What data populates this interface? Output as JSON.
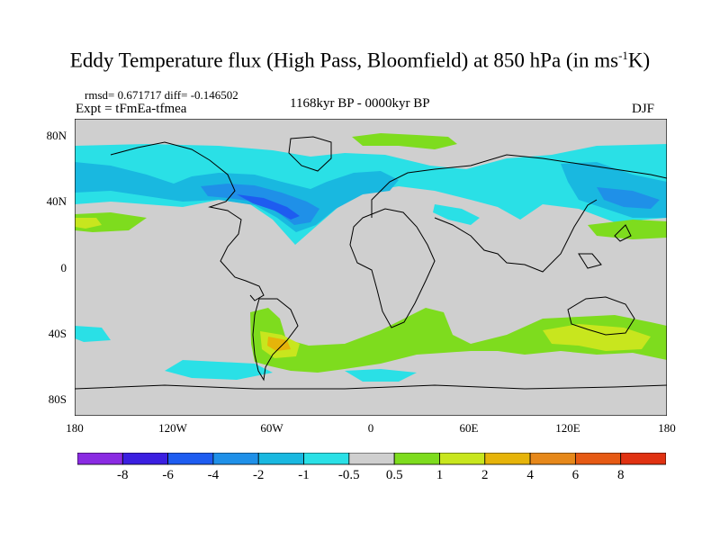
{
  "title": {
    "main": "Eddy Temperature flux (High Pass, Bloomfield) at 850 hPa (in ms",
    "sup": "-1",
    "tail": "K)"
  },
  "stats": {
    "rmsd": "rmsd= 0.671717 diff= -0.146502",
    "expt": "Expt = tFmEa-tfmea"
  },
  "period": "1168kyr BP - 0000kyr BP",
  "season": "DJF",
  "axes": {
    "lat_labels": [
      "80N",
      "40N",
      "0",
      "40S",
      "80S"
    ],
    "lon_labels": [
      "180",
      "120W",
      "60W",
      "0",
      "60E",
      "120E",
      "180"
    ]
  },
  "colorbar": {
    "labels": [
      "-8",
      "-6",
      "-4",
      "-2",
      "-1",
      "-0.5",
      "0.5",
      "1",
      "2",
      "4",
      "6",
      "8"
    ],
    "colors": [
      "#8a2be2",
      "#3b1fe0",
      "#1e5cf0",
      "#1f90e8",
      "#19b8e0",
      "#2ae0e6",
      "#cfcfcf",
      "#7edc1e",
      "#c8e61e",
      "#e6b40a",
      "#e6881a",
      "#e65a14",
      "#e03212"
    ]
  },
  "colors": {
    "land_background": "#cfcfcf",
    "coast": "#000000"
  }
}
